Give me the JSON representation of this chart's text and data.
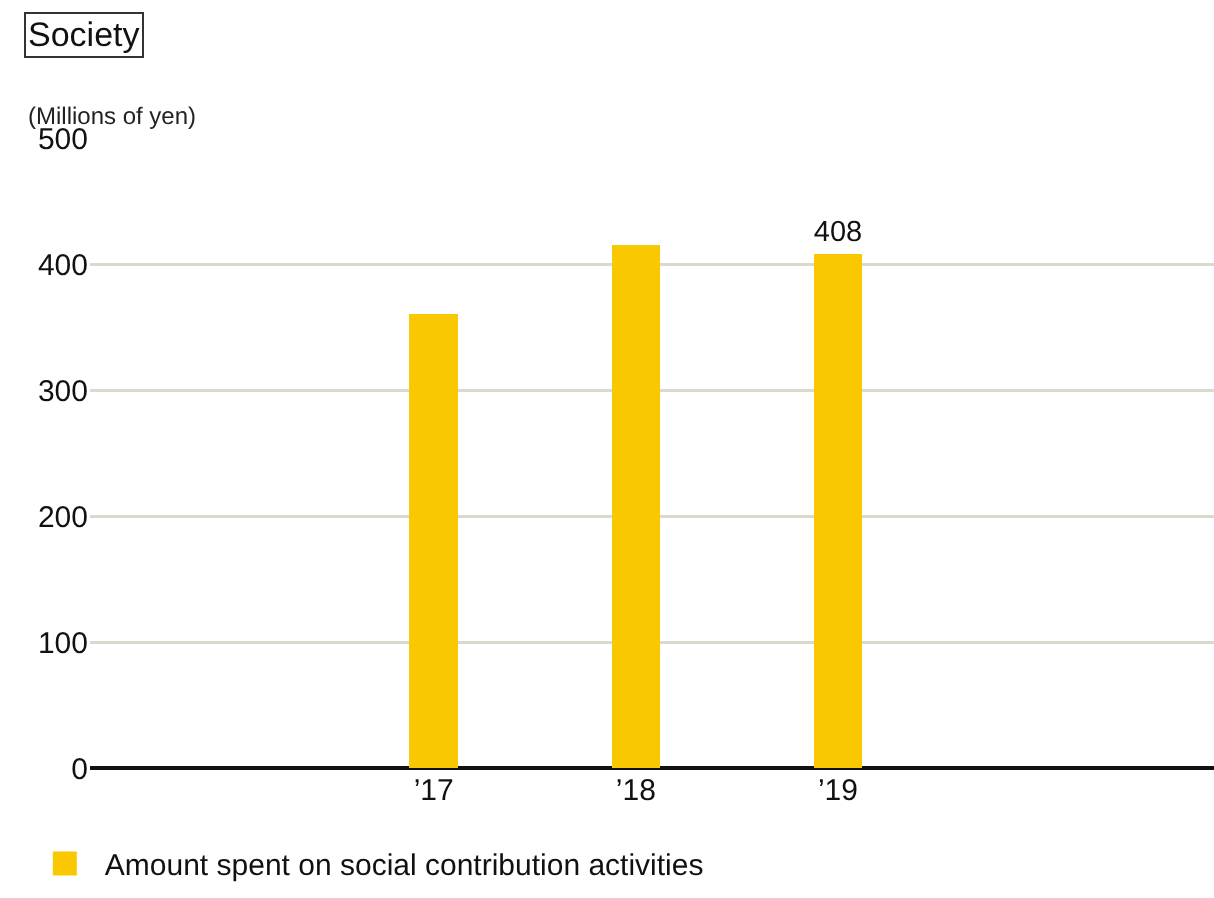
{
  "chart_data": {
    "type": "bar",
    "title": "Society",
    "ylabel": "(Millions of yen)",
    "categories": [
      null,
      null,
      "’17",
      "’18",
      "’19",
      null
    ],
    "series": [
      {
        "name": "Amount spent on social contribution activities",
        "color": "#fac800",
        "values": [
          null,
          null,
          360,
          415,
          408,
          null
        ],
        "value_labels": [
          null,
          null,
          null,
          null,
          "408",
          null
        ]
      }
    ],
    "ylim": [
      0,
      500
    ],
    "yticks": [
      0,
      100,
      200,
      300,
      400,
      500
    ],
    "grid": "y",
    "legend": "bottom"
  }
}
